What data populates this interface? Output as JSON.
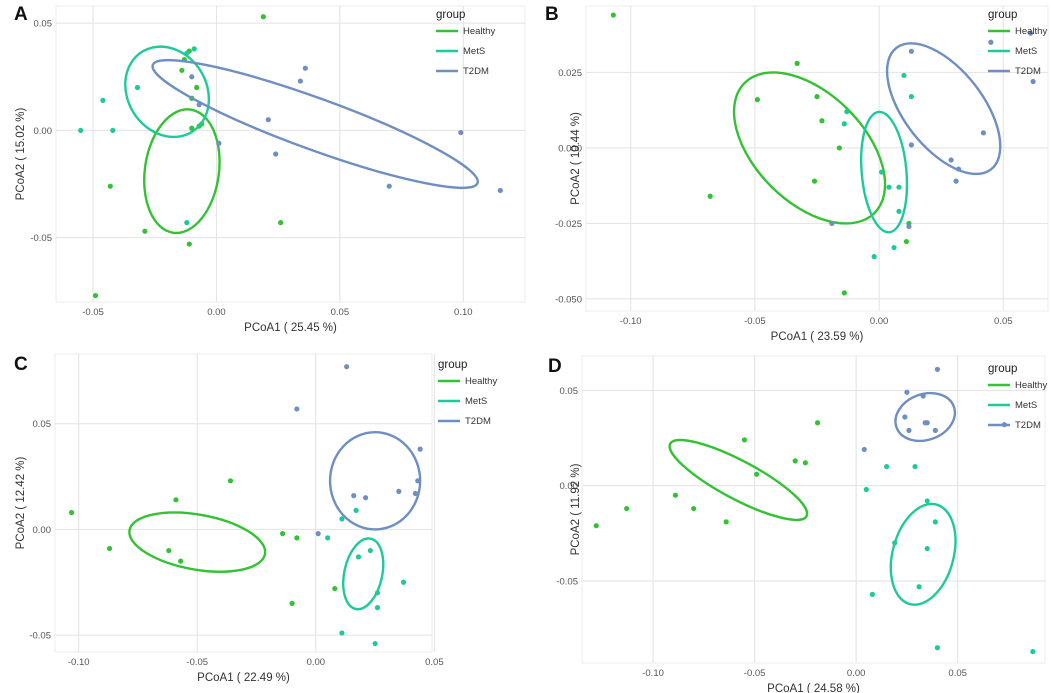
{
  "figure": {
    "panels": [
      "A",
      "B",
      "C",
      "D"
    ]
  },
  "colors": {
    "Healthy": "#33c233",
    "MetS": "#1fc99a",
    "T2DM": "#6f8fc3",
    "grid": "#e2e2e2",
    "axis": "#555555"
  },
  "chart_data": [
    {
      "panel": "A",
      "type": "scatter",
      "xlabel": "PCoA1 ( 25.45 %)",
      "ylabel": "PCoA2 ( 15.02 %)",
      "xlim": [
        -0.065,
        0.125
      ],
      "ylim": [
        -0.08,
        0.058
      ],
      "xticks": [
        -0.05,
        0.0,
        0.05,
        0.1
      ],
      "xtick_labels": [
        "-0.05",
        "0.00",
        "0.05",
        "0.10"
      ],
      "yticks": [
        -0.05,
        0.0,
        0.05
      ],
      "ytick_labels": [
        "-0.05",
        "0.00",
        "0.05"
      ],
      "legend": {
        "title": "group",
        "entries": [
          "Healthy",
          "MetS",
          "T2DM"
        ]
      },
      "series": [
        {
          "name": "Healthy",
          "points": [
            [
              -0.011,
              0.037
            ],
            [
              -0.013,
              0.033
            ],
            [
              -0.014,
              0.028
            ],
            [
              -0.01,
              0.015
            ],
            [
              -0.008,
              0.02
            ],
            [
              -0.007,
              0.002
            ],
            [
              -0.01,
              0.001
            ],
            [
              -0.006,
              0.003
            ],
            [
              -0.043,
              -0.026
            ],
            [
              -0.029,
              -0.047
            ],
            [
              -0.011,
              -0.053
            ],
            [
              0.026,
              -0.043
            ],
            [
              -0.049,
              -0.077
            ],
            [
              0.019,
              0.053
            ]
          ],
          "ellipse": {
            "cx": -0.014,
            "cy": -0.019,
            "rx": 0.015,
            "ry": 0.029,
            "angle": -8
          }
        },
        {
          "name": "MetS",
          "points": [
            [
              -0.009,
              0.038
            ],
            [
              -0.012,
              0.036
            ],
            [
              -0.032,
              0.02
            ],
            [
              -0.046,
              0.014
            ],
            [
              -0.042,
              0.0
            ],
            [
              -0.055,
              0.0
            ],
            [
              -0.012,
              -0.043
            ]
          ],
          "ellipse": {
            "cx": -0.02,
            "cy": 0.018,
            "rx": 0.016,
            "ry": 0.022,
            "angle": 32
          }
        },
        {
          "name": "T2DM",
          "points": [
            [
              -0.01,
              0.025
            ],
            [
              -0.007,
              0.012
            ],
            [
              0.001,
              -0.006
            ],
            [
              0.021,
              0.005
            ],
            [
              0.024,
              -0.011
            ],
            [
              0.034,
              0.023
            ],
            [
              0.036,
              0.029
            ],
            [
              0.07,
              -0.026
            ],
            [
              0.099,
              -0.001
            ],
            [
              0.115,
              -0.028
            ]
          ],
          "ellipse": {
            "cx": 0.04,
            "cy": 0.003,
            "rx": 0.07,
            "ry": 0.012,
            "angle": -20
          }
        }
      ]
    },
    {
      "panel": "B",
      "type": "scatter",
      "xlabel": "PCoA1 ( 23.59 %)",
      "ylabel": "PCoA2 ( 10.44 %)",
      "xlim": [
        -0.118,
        0.068
      ],
      "ylim": [
        -0.054,
        0.047
      ],
      "xticks": [
        -0.1,
        -0.05,
        0.0,
        0.05
      ],
      "xtick_labels": [
        "-0.10",
        "-0.05",
        "0.00",
        "0.05"
      ],
      "yticks": [
        -0.05,
        -0.025,
        0.0,
        0.025
      ],
      "ytick_labels": [
        "-0.050",
        "-0.025",
        "0.000",
        "0.025"
      ],
      "legend": {
        "title": "group",
        "entries": [
          "Healthy",
          "MetS",
          "T2DM"
        ]
      },
      "series": [
        {
          "name": "Healthy",
          "points": [
            [
              -0.107,
              0.044
            ],
            [
              -0.033,
              0.028
            ],
            [
              -0.049,
              0.016
            ],
            [
              -0.025,
              0.017
            ],
            [
              -0.023,
              0.009
            ],
            [
              -0.016,
              0.0
            ],
            [
              -0.026,
              -0.011
            ],
            [
              -0.068,
              -0.016
            ],
            [
              -0.014,
              -0.048
            ],
            [
              0.011,
              -0.031
            ],
            [
              0.012,
              -0.025
            ]
          ],
          "ellipse": {
            "cx": -0.028,
            "cy": 0.0,
            "rx": 0.037,
            "ry": 0.018,
            "angle": -45
          }
        },
        {
          "name": "MetS",
          "points": [
            [
              -0.014,
              0.008
            ],
            [
              -0.013,
              0.012
            ],
            [
              0.01,
              0.024
            ],
            [
              0.013,
              0.017
            ],
            [
              0.001,
              -0.008
            ],
            [
              0.004,
              -0.013
            ],
            [
              0.008,
              -0.013
            ],
            [
              0.008,
              -0.021
            ],
            [
              0.006,
              -0.033
            ],
            [
              -0.002,
              -0.036
            ]
          ],
          "ellipse": {
            "cx": 0.002,
            "cy": -0.008,
            "rx": 0.009,
            "ry": 0.02,
            "angle": 5
          }
        },
        {
          "name": "T2DM",
          "points": [
            [
              0.013,
              0.032
            ],
            [
              0.045,
              0.035
            ],
            [
              0.061,
              0.038
            ],
            [
              0.062,
              0.022
            ],
            [
              0.042,
              0.005
            ],
            [
              0.013,
              0.001
            ],
            [
              0.029,
              -0.004
            ],
            [
              0.032,
              -0.007
            ],
            [
              0.031,
              -0.011
            ],
            [
              -0.019,
              -0.025
            ],
            [
              0.012,
              -0.026
            ]
          ],
          "ellipse": {
            "cx": 0.026,
            "cy": 0.013,
            "rx": 0.031,
            "ry": 0.013,
            "angle": -52
          }
        }
      ]
    },
    {
      "panel": "C",
      "type": "scatter",
      "xlabel": "PCoA1 ( 22.49 %)",
      "ylabel": "PCoA2 ( 12.42 %)",
      "xlim": [
        -0.11,
        0.049
      ],
      "ylim": [
        -0.058,
        0.083
      ],
      "xticks": [
        -0.1,
        -0.05,
        0.0,
        0.05
      ],
      "xtick_labels": [
        "-0.10",
        "-0.05",
        "0.00",
        "0.05"
      ],
      "yticks": [
        -0.05,
        0.0,
        0.05
      ],
      "ytick_labels": [
        "-0.05",
        "0.00",
        "0.05"
      ],
      "legend": {
        "title": "group",
        "entries": [
          "Healthy",
          "MetS",
          "T2DM"
        ]
      },
      "series": [
        {
          "name": "Healthy",
          "points": [
            [
              -0.103,
              0.008
            ],
            [
              -0.087,
              -0.009
            ],
            [
              -0.059,
              0.014
            ],
            [
              -0.062,
              -0.01
            ],
            [
              -0.057,
              -0.015
            ],
            [
              -0.036,
              0.023
            ],
            [
              -0.014,
              -0.002
            ],
            [
              -0.008,
              -0.004
            ],
            [
              -0.01,
              -0.035
            ],
            [
              0.008,
              -0.028
            ]
          ],
          "ellipse": {
            "cx": -0.05,
            "cy": -0.006,
            "rx": 0.029,
            "ry": 0.013,
            "angle": -10
          }
        },
        {
          "name": "MetS",
          "points": [
            [
              0.005,
              -0.004
            ],
            [
              0.011,
              0.005
            ],
            [
              0.017,
              0.009
            ],
            [
              0.018,
              -0.013
            ],
            [
              0.023,
              -0.01
            ],
            [
              0.026,
              -0.03
            ],
            [
              0.026,
              -0.037
            ],
            [
              0.037,
              -0.025
            ],
            [
              0.011,
              -0.049
            ],
            [
              0.025,
              -0.054
            ]
          ],
          "ellipse": {
            "cx": 0.02,
            "cy": -0.021,
            "rx": 0.008,
            "ry": 0.017,
            "angle": -12
          }
        },
        {
          "name": "T2DM",
          "points": [
            [
              0.013,
              0.077
            ],
            [
              -0.008,
              0.057
            ],
            [
              0.044,
              0.038
            ],
            [
              0.043,
              0.023
            ],
            [
              0.042,
              0.017
            ],
            [
              0.035,
              0.018
            ],
            [
              0.016,
              0.016
            ],
            [
              0.021,
              0.015
            ],
            [
              0.001,
              -0.002
            ]
          ],
          "ellipse": {
            "cx": 0.025,
            "cy": 0.023,
            "rx": 0.019,
            "ry": 0.023,
            "angle": 0
          }
        }
      ]
    },
    {
      "panel": "D",
      "type": "scatter",
      "xlabel": "PCoA1 ( 24.58 %)",
      "ylabel": "PCoA2 ( 11.92 %)",
      "xlim": [
        -0.135,
        0.093
      ],
      "ylim": [
        -0.093,
        0.068
      ],
      "xticks": [
        -0.1,
        -0.05,
        0.0,
        0.05
      ],
      "xtick_labels": [
        "-0.10",
        "-0.05",
        "0.00",
        "0.05"
      ],
      "yticks": [
        -0.05,
        0.0,
        0.05
      ],
      "ytick_labels": [
        "-0.05",
        "0.00",
        "0.05"
      ],
      "legend": {
        "title": "group",
        "entries": [
          "Healthy",
          "MetS",
          "T2DM"
        ]
      },
      "series": [
        {
          "name": "Healthy",
          "points": [
            [
              -0.128,
              -0.021
            ],
            [
              -0.113,
              -0.012
            ],
            [
              -0.089,
              -0.005
            ],
            [
              -0.08,
              -0.012
            ],
            [
              -0.064,
              -0.019
            ],
            [
              -0.055,
              0.024
            ],
            [
              -0.049,
              0.006
            ],
            [
              -0.03,
              0.013
            ],
            [
              -0.025,
              0.012
            ],
            [
              -0.019,
              0.033
            ]
          ],
          "ellipse": {
            "cx": -0.058,
            "cy": 0.003,
            "rx": 0.038,
            "ry": 0.01,
            "angle": -28
          }
        },
        {
          "name": "MetS",
          "points": [
            [
              0.005,
              -0.002
            ],
            [
              0.015,
              0.01
            ],
            [
              0.029,
              0.01
            ],
            [
              0.035,
              -0.008
            ],
            [
              0.039,
              -0.019
            ],
            [
              0.019,
              -0.03
            ],
            [
              0.035,
              -0.033
            ],
            [
              0.031,
              -0.053
            ],
            [
              0.008,
              -0.057
            ],
            [
              0.04,
              -0.085
            ],
            [
              0.087,
              -0.087
            ]
          ],
          "ellipse": {
            "cx": 0.033,
            "cy": -0.036,
            "rx": 0.015,
            "ry": 0.027,
            "angle": -15
          }
        },
        {
          "name": "T2DM",
          "points": [
            [
              0.04,
              0.061
            ],
            [
              0.025,
              0.049
            ],
            [
              0.033,
              0.047
            ],
            [
              0.024,
              0.036
            ],
            [
              0.034,
              0.033
            ],
            [
              0.035,
              0.033
            ],
            [
              0.039,
              0.029
            ],
            [
              0.026,
              0.029
            ],
            [
              0.004,
              0.019
            ],
            [
              0.073,
              0.032
            ]
          ],
          "ellipse": {
            "cx": 0.034,
            "cy": 0.036,
            "rx": 0.015,
            "ry": 0.012,
            "angle": 20
          }
        }
      ]
    }
  ]
}
